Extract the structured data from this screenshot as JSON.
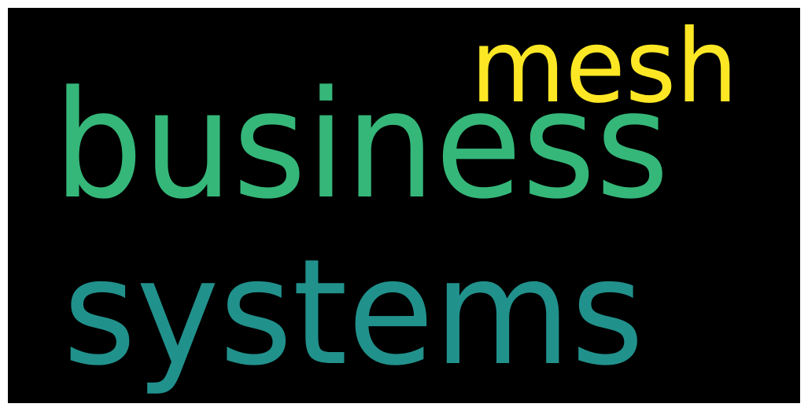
{
  "background_color": "#000000",
  "words": [
    {
      "text": "business",
      "color": "#35b779"
    },
    {
      "text": "systems",
      "color": "#21918c"
    },
    {
      "text": "mesh",
      "color": "#fde725"
    }
  ]
}
